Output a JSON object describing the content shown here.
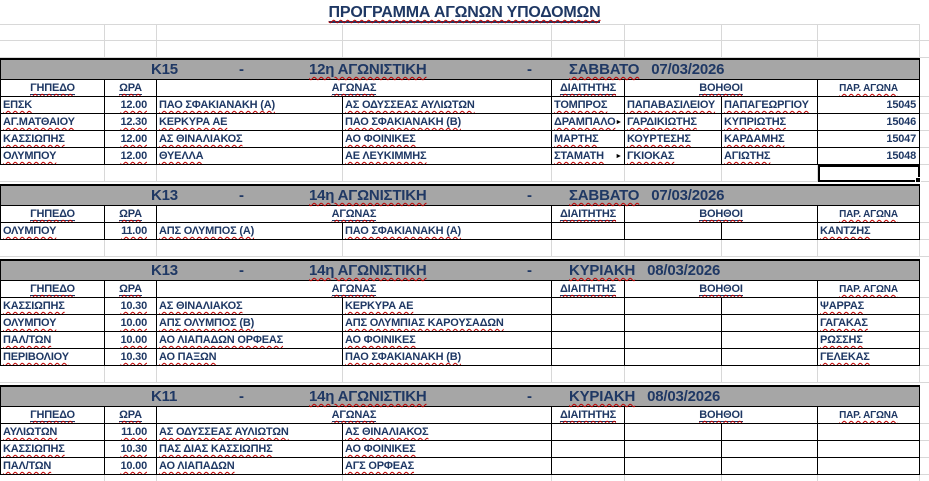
{
  "title": "ΠΡΟΓΡΑΜΜΑ ΑΓΩΝΩΝ ΥΠΟΔΟΜΩΝ",
  "band_separator": "-",
  "columns": {
    "venue": "ΓΗΠΕΔΟ",
    "time": "ΩΡΑ",
    "match": "ΑΓΩΝΑΣ",
    "referee": "ΔΙΑΙΤΗΤΗΣ",
    "assistants": "ΒΟΗΘΟΙ",
    "match_no": "ΠΑΡ. ΑΓΩΝΑ"
  },
  "colors": {
    "text_navy": "#1F3864",
    "band_gray": "#A6A6A6",
    "squiggle_red": "#C00000",
    "gridline_gray": "#D8D8D8"
  },
  "sections": [
    {
      "category": "K15",
      "matchday": "12η ΑΓΩΝΙΣΤΙΚΗ",
      "day": "ΣΑΒΒΑΤΟ",
      "date": "07/03/2026",
      "rows": [
        {
          "venue": "ΕΠΣΚ",
          "time": "12.00",
          "home": "ΠΑΟ ΣΦΑΚΙΑΝΑΚΗ (Α)",
          "away": "ΑΣ ΟΔΥΣΣΕΑΣ ΑΥΛΙΩΤΩΝ",
          "referee": "ΤΟΜΠΡΟΣ",
          "assistant1": "ΠΑΠΑΒΑΣΙΛΕΙΟΥ",
          "assistant2": "ΠΑΠΑΓΕΩΡΓΙΟΥ",
          "match_no": "15045"
        },
        {
          "venue": "ΑΓ.ΜΑΤΘΑΙΟΥ",
          "time": "12.30",
          "home": "ΚΕΡΚΥΡΑ ΑΕ",
          "away": "ΠΑΟ ΣΦΑΚΙΑΝΑΚΗ (Β)",
          "referee": "ΔΡΑΜΠΑΛΟ",
          "referee_marker": "►",
          "assistant1": "ΓΑΡΔΙΚΙΩΤΗΣ",
          "assistant2": "ΚΥΠΡΙΩΤΗΣ",
          "match_no": "15046"
        },
        {
          "venue": "ΚΑΣΣΙΩΠΗΣ",
          "time": "12.00",
          "home": "ΑΣ ΘΙΝΑΛΙΑΚΟΣ",
          "away": "ΑΟ ΦΟΙΝΙΚΕΣ",
          "referee": "ΜΑΡΤΗΣ",
          "assistant1": "ΚΟΥΡΤΕΣΗΣ",
          "assistant2": "ΚΑΡΔΑΜΗΣ",
          "match_no": "15047"
        },
        {
          "venue": "ΟΛΥΜΠΟΥ",
          "time": "12.00",
          "home": "ΘΥΕΛΛΑ",
          "away": "ΑΕ ΛΕΥΚΙΜΜΗΣ",
          "referee": "ΣΤΑΜΑΤΗ",
          "referee_marker": "►",
          "assistant1": "ΓΚΙΟΚΑΣ",
          "assistant2": "ΑΓΙΩΤΗΣ",
          "match_no": "15048"
        }
      ]
    },
    {
      "category": "K13",
      "matchday": "14η ΑΓΩΝΙΣΤΙΚΗ",
      "day": "ΣΑΒΒΑΤΟ",
      "date": "07/03/2026",
      "rows": [
        {
          "venue": "ΟΛΥΜΠΟΥ",
          "time": "11.00",
          "home": "ΑΠΣ ΟΛΥΜΠΟΣ (Α)",
          "away": "ΠΑΟ ΣΦΑΚΙΑΝΑΚΗ (Α)",
          "referee": "",
          "assistant1": "",
          "assistant2": "",
          "match_no": "ΚΑΝΤΖΗΣ"
        }
      ]
    },
    {
      "category": "K13",
      "matchday": "14η ΑΓΩΝΙΣΤΙΚΗ",
      "day": "ΚΥΡΙΑΚΗ",
      "date": "08/03/2026",
      "rows": [
        {
          "venue": "ΚΑΣΣΙΩΠΗΣ",
          "time": "10.30",
          "home": "ΑΣ ΘΙΝΑΛΙΑΚΟΣ",
          "away": "ΚΕΡΚΥΡΑ ΑΕ",
          "referee": "",
          "assistant1": "",
          "assistant2": "",
          "match_no": "ΨΑΡΡΑΣ"
        },
        {
          "venue": "ΟΛΥΜΠΟΥ",
          "time": "10.00",
          "home": "ΑΠΣ ΟΛΥΜΠΟΣ (Β)",
          "away": "ΑΠΣ ΟΛΥΜΠΙΑΣ ΚΑΡΟΥΣΑΔΩΝ",
          "referee": "",
          "assistant1": "",
          "assistant2": "",
          "match_no": "ΓΑΓΑΚΑΣ"
        },
        {
          "venue": "ΠΑΛ/ΤΩΝ",
          "time": "10.00",
          "home": "ΑΟ ΛΙΑΠΑΔΩΝ ΟΡΦΕΑΣ",
          "away": "ΑΟ ΦΟΙΝΙΚΕΣ",
          "referee": "",
          "assistant1": "",
          "assistant2": "",
          "match_no": "ΡΩΣΣΗΣ"
        },
        {
          "venue": "ΠΕΡΙΒΟΛΙΟΥ",
          "time": "10.30",
          "home": "ΑΟ ΠΑΞΩΝ",
          "away": "ΠΑΟ ΣΦΑΚΙΑΝΑΚΗ (Β)",
          "referee": "",
          "assistant1": "",
          "assistant2": "",
          "match_no": "ΓΕΛΕΚΑΣ"
        }
      ]
    },
    {
      "category": "K11",
      "matchday": "14η ΑΓΩΝΙΣΤΙΚΗ",
      "day": "ΚΥΡΙΑΚΗ",
      "date": "08/03/2026",
      "rows": [
        {
          "venue": "ΑΥΛΙΩΤΩΝ",
          "time": "11.00",
          "home": "ΑΣ ΟΔΥΣΣΕΑΣ ΑΥΛΙΩΤΩΝ",
          "away": "ΑΣ ΘΙΝΑΛΙΑΚΟΣ",
          "referee": "",
          "assistant1": "",
          "assistant2": "",
          "match_no": ""
        },
        {
          "venue": "ΚΑΣΣΙΩΠΗΣ",
          "time": "10.30",
          "home": "ΠΑΣ ΔΙΑΣ ΚΑΣΣΙΩΠΗΣ",
          "away": "ΑΟ ΦΟΙΝΙΚΕΣ",
          "referee": "",
          "assistant1": "",
          "assistant2": "",
          "match_no": ""
        },
        {
          "venue": "ΠΑΛ/ΤΩΝ",
          "time": "10.00",
          "home": "ΑΟ ΛΙΑΠΑΔΩΝ",
          "away": "ΑΓΣ ΟΡΦΕΑΣ",
          "referee": "",
          "assistant1": "",
          "assistant2": "",
          "match_no": ""
        }
      ]
    }
  ]
}
